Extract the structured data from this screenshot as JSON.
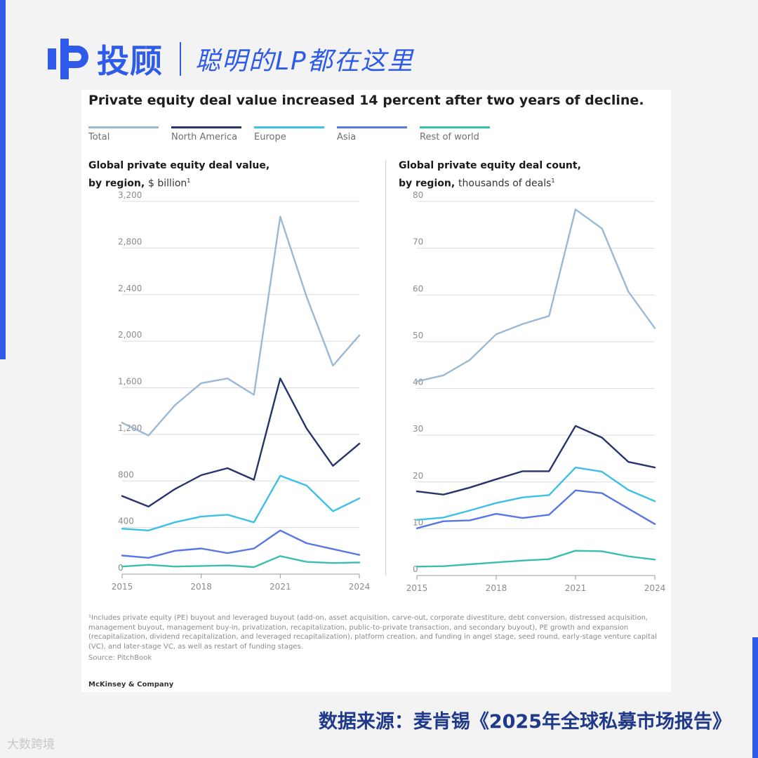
{
  "brand": {
    "name": "投顾",
    "slogan": "聪明的LP都在这里"
  },
  "card_title": "Private equity deal value increased 14 percent after two years of decline.",
  "legend": [
    {
      "label": "Total",
      "color": "#9bb8d4"
    },
    {
      "label": "North America",
      "color": "#27336b"
    },
    {
      "label": "Europe",
      "color": "#3cc0e6"
    },
    {
      "label": "Asia",
      "color": "#5876e6"
    },
    {
      "label": "Rest of world",
      "color": "#3dbcb0"
    }
  ],
  "chart_data": [
    {
      "type": "line",
      "title": "Global private equity deal value,",
      "title_line2": "by region,",
      "unit": "$ billion",
      "footnote_marker": "1",
      "x": [
        2015,
        2016,
        2017,
        2018,
        2019,
        2020,
        2021,
        2022,
        2023,
        2024
      ],
      "x_ticks": [
        "2015",
        "2018",
        "2021",
        "2024"
      ],
      "ylim": [
        0,
        3200
      ],
      "y_ticks": [
        "0",
        "400",
        "800",
        "1,200",
        "1,600",
        "2,000",
        "2,400",
        "2,800",
        "3,200"
      ],
      "grid": true,
      "series": [
        {
          "name": "Total",
          "values": [
            1300,
            1190,
            1450,
            1640,
            1680,
            1540,
            3070,
            2380,
            1790,
            2050
          ]
        },
        {
          "name": "North America",
          "values": [
            670,
            580,
            730,
            850,
            910,
            810,
            1680,
            1250,
            930,
            1120
          ]
        },
        {
          "name": "Europe",
          "values": [
            390,
            375,
            445,
            495,
            510,
            445,
            845,
            760,
            540,
            650
          ]
        },
        {
          "name": "Asia",
          "values": [
            160,
            140,
            200,
            220,
            180,
            220,
            375,
            265,
            215,
            165
          ]
        },
        {
          "name": "Rest of world",
          "values": [
            65,
            80,
            65,
            70,
            75,
            60,
            155,
            105,
            95,
            100
          ]
        }
      ]
    },
    {
      "type": "line",
      "title": "Global private equity deal count,",
      "title_line2": "by region,",
      "unit": "thousands of deals",
      "footnote_marker": "1",
      "x": [
        2015,
        2016,
        2017,
        2018,
        2019,
        2020,
        2021,
        2022,
        2023,
        2024
      ],
      "x_ticks": [
        "2015",
        "2018",
        "2021",
        "2024"
      ],
      "ylim": [
        0,
        80
      ],
      "y_ticks": [
        "0",
        "10",
        "20",
        "30",
        "40",
        "50",
        "60",
        "70",
        "80"
      ],
      "grid": true,
      "series": [
        {
          "name": "Total",
          "values": [
            41.5,
            42.8,
            46.1,
            51.6,
            53.8,
            55.5,
            78.3,
            74.2,
            60.7,
            52.9
          ]
        },
        {
          "name": "North America",
          "values": [
            18.0,
            17.3,
            18.8,
            20.6,
            22.3,
            22.3,
            32.0,
            29.5,
            24.3,
            23.1
          ]
        },
        {
          "name": "Europe",
          "values": [
            11.9,
            12.4,
            13.9,
            15.5,
            16.7,
            17.2,
            23.1,
            22.2,
            18.3,
            15.9
          ]
        },
        {
          "name": "Asia",
          "values": [
            10.1,
            11.6,
            11.8,
            13.2,
            12.3,
            13.0,
            18.2,
            17.6,
            14.3,
            11.0
          ]
        },
        {
          "name": "Rest of world",
          "values": [
            1.9,
            2.0,
            2.4,
            2.8,
            3.2,
            3.5,
            5.3,
            5.2,
            4.1,
            3.4
          ]
        }
      ]
    }
  ],
  "footnote": "¹Includes private equity (PE) buyout and leveraged buyout (add-on, asset acquisition, carve-out, corporate divestiture, debt conversion, distressed acquisition, management buyout, management buy-in, privatization, recapitalization, public-to-private transaction, and secondary buyout), PE growth and expansion (recapitalization, dividend recapitalization, and leveraged recapitalization), platform creation, and funding in angel stage, seed round, early-stage venture capital (VC), and later-stage VC, as well as restart of funding stages.",
  "source": "Source: PitchBook",
  "company": "McKinsey & Company",
  "data_source": "数据来源：麦肯锡《2025年全球私募市场报告》",
  "watermark": "大数跨境"
}
